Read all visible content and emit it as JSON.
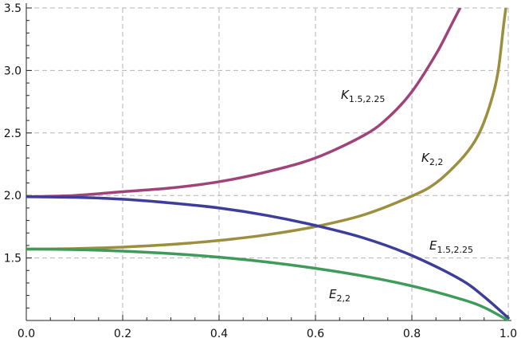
{
  "chart_data": {
    "type": "line",
    "title": "",
    "xlabel": "",
    "ylabel": "",
    "xlim": [
      0,
      1
    ],
    "ylim": [
      1.0,
      3.5
    ],
    "grid": true,
    "x_ticks": [
      0.0,
      0.2,
      0.4,
      0.6,
      0.8,
      1.0
    ],
    "x_tick_labels": [
      "0.0",
      "0.2",
      "0.4",
      "0.6",
      "0.8",
      "1.0"
    ],
    "y_ticks": [
      1.5,
      2.0,
      2.5,
      3.0,
      3.5
    ],
    "y_tick_labels": [
      "1.5",
      "2.0",
      "2.5",
      "3.0",
      "3.5"
    ],
    "series": [
      {
        "name": "K1.5,2.25",
        "label_main": "K",
        "label_sub": "1.5,2.25",
        "color": "#a0437a",
        "x": [
          0,
          0.1,
          0.2,
          0.3,
          0.4,
          0.5,
          0.6,
          0.7,
          0.75,
          0.8,
          0.85,
          0.88,
          0.9
        ],
        "y": [
          1.99,
          2.0,
          2.03,
          2.06,
          2.11,
          2.19,
          2.3,
          2.48,
          2.62,
          2.83,
          3.13,
          3.35,
          3.5
        ]
      },
      {
        "name": "K2,2",
        "label_main": "K",
        "label_sub": "2,2",
        "color": "#9c8f3e",
        "x": [
          0,
          0.1,
          0.2,
          0.3,
          0.4,
          0.5,
          0.6,
          0.7,
          0.8,
          0.85,
          0.9,
          0.93,
          0.95,
          0.97,
          0.98,
          0.99,
          0.995
        ],
        "y": [
          1.571,
          1.575,
          1.587,
          1.608,
          1.64,
          1.686,
          1.751,
          1.845,
          1.995,
          2.1,
          2.28,
          2.43,
          2.59,
          2.83,
          3.02,
          3.35,
          3.5
        ]
      },
      {
        "name": "E1.5,2.25",
        "label_main": "E",
        "label_sub": "1.5,2.25",
        "color": "#3d3d9c",
        "x": [
          0,
          0.1,
          0.2,
          0.3,
          0.4,
          0.5,
          0.6,
          0.7,
          0.8,
          0.9,
          0.95,
          1.0
        ],
        "y": [
          1.99,
          1.985,
          1.97,
          1.94,
          1.9,
          1.84,
          1.76,
          1.66,
          1.52,
          1.33,
          1.19,
          1.02
        ]
      },
      {
        "name": "E2,2",
        "label_main": "E",
        "label_sub": "2,2",
        "color": "#3e9b5a",
        "x": [
          0,
          0.1,
          0.2,
          0.3,
          0.4,
          0.5,
          0.6,
          0.7,
          0.8,
          0.9,
          0.95,
          1.0
        ],
        "y": [
          1.571,
          1.567,
          1.555,
          1.535,
          1.506,
          1.467,
          1.417,
          1.355,
          1.276,
          1.173,
          1.104,
          1.0
        ]
      }
    ]
  }
}
